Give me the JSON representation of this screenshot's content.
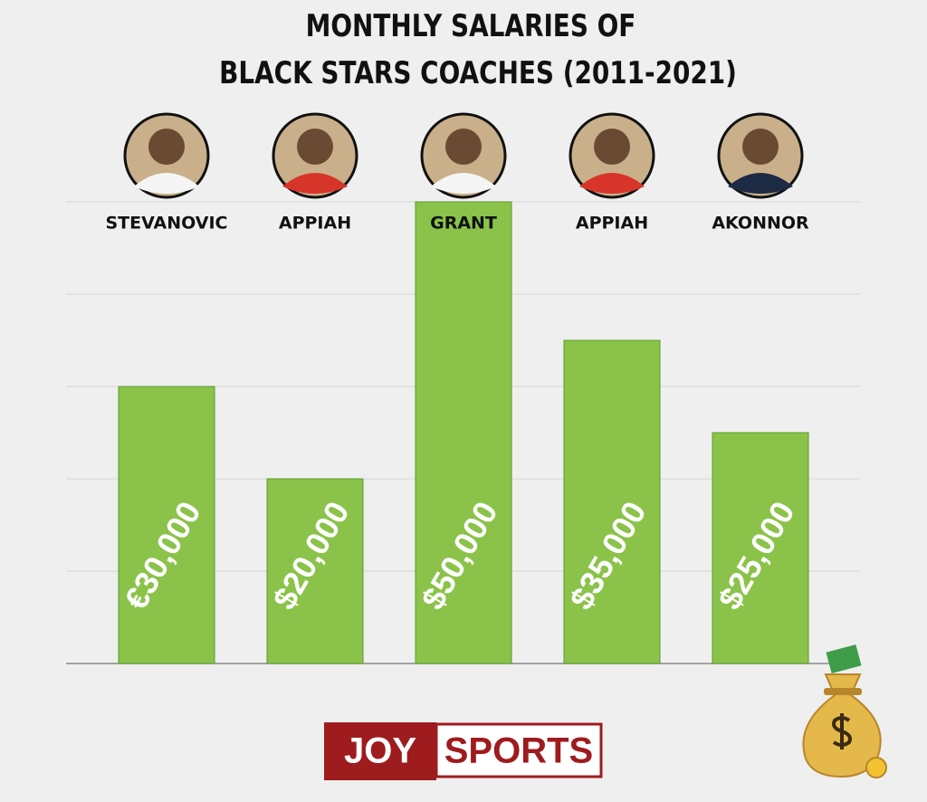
{
  "chart_data": {
    "type": "bar",
    "title": [
      "MONTHLY SALARIES OF",
      "BLACK STARS COACHES (2011-2021)"
    ],
    "categories": [
      "STEVANOVIC",
      "APPIAH",
      "GRANT",
      "APPIAH",
      "AKONNOR"
    ],
    "values": [
      30000,
      20000,
      50000,
      35000,
      25000
    ],
    "value_labels": [
      "€30,000",
      "$20,000",
      "$50,000",
      "$35,000",
      "$25,000"
    ],
    "color": "#8bc34a",
    "ylim": [
      0,
      50000
    ],
    "yticks": [
      0,
      10000,
      20000,
      30000,
      40000,
      50000
    ],
    "grid": true
  },
  "logo": {
    "left": "JOY",
    "right": "SPORTS"
  }
}
